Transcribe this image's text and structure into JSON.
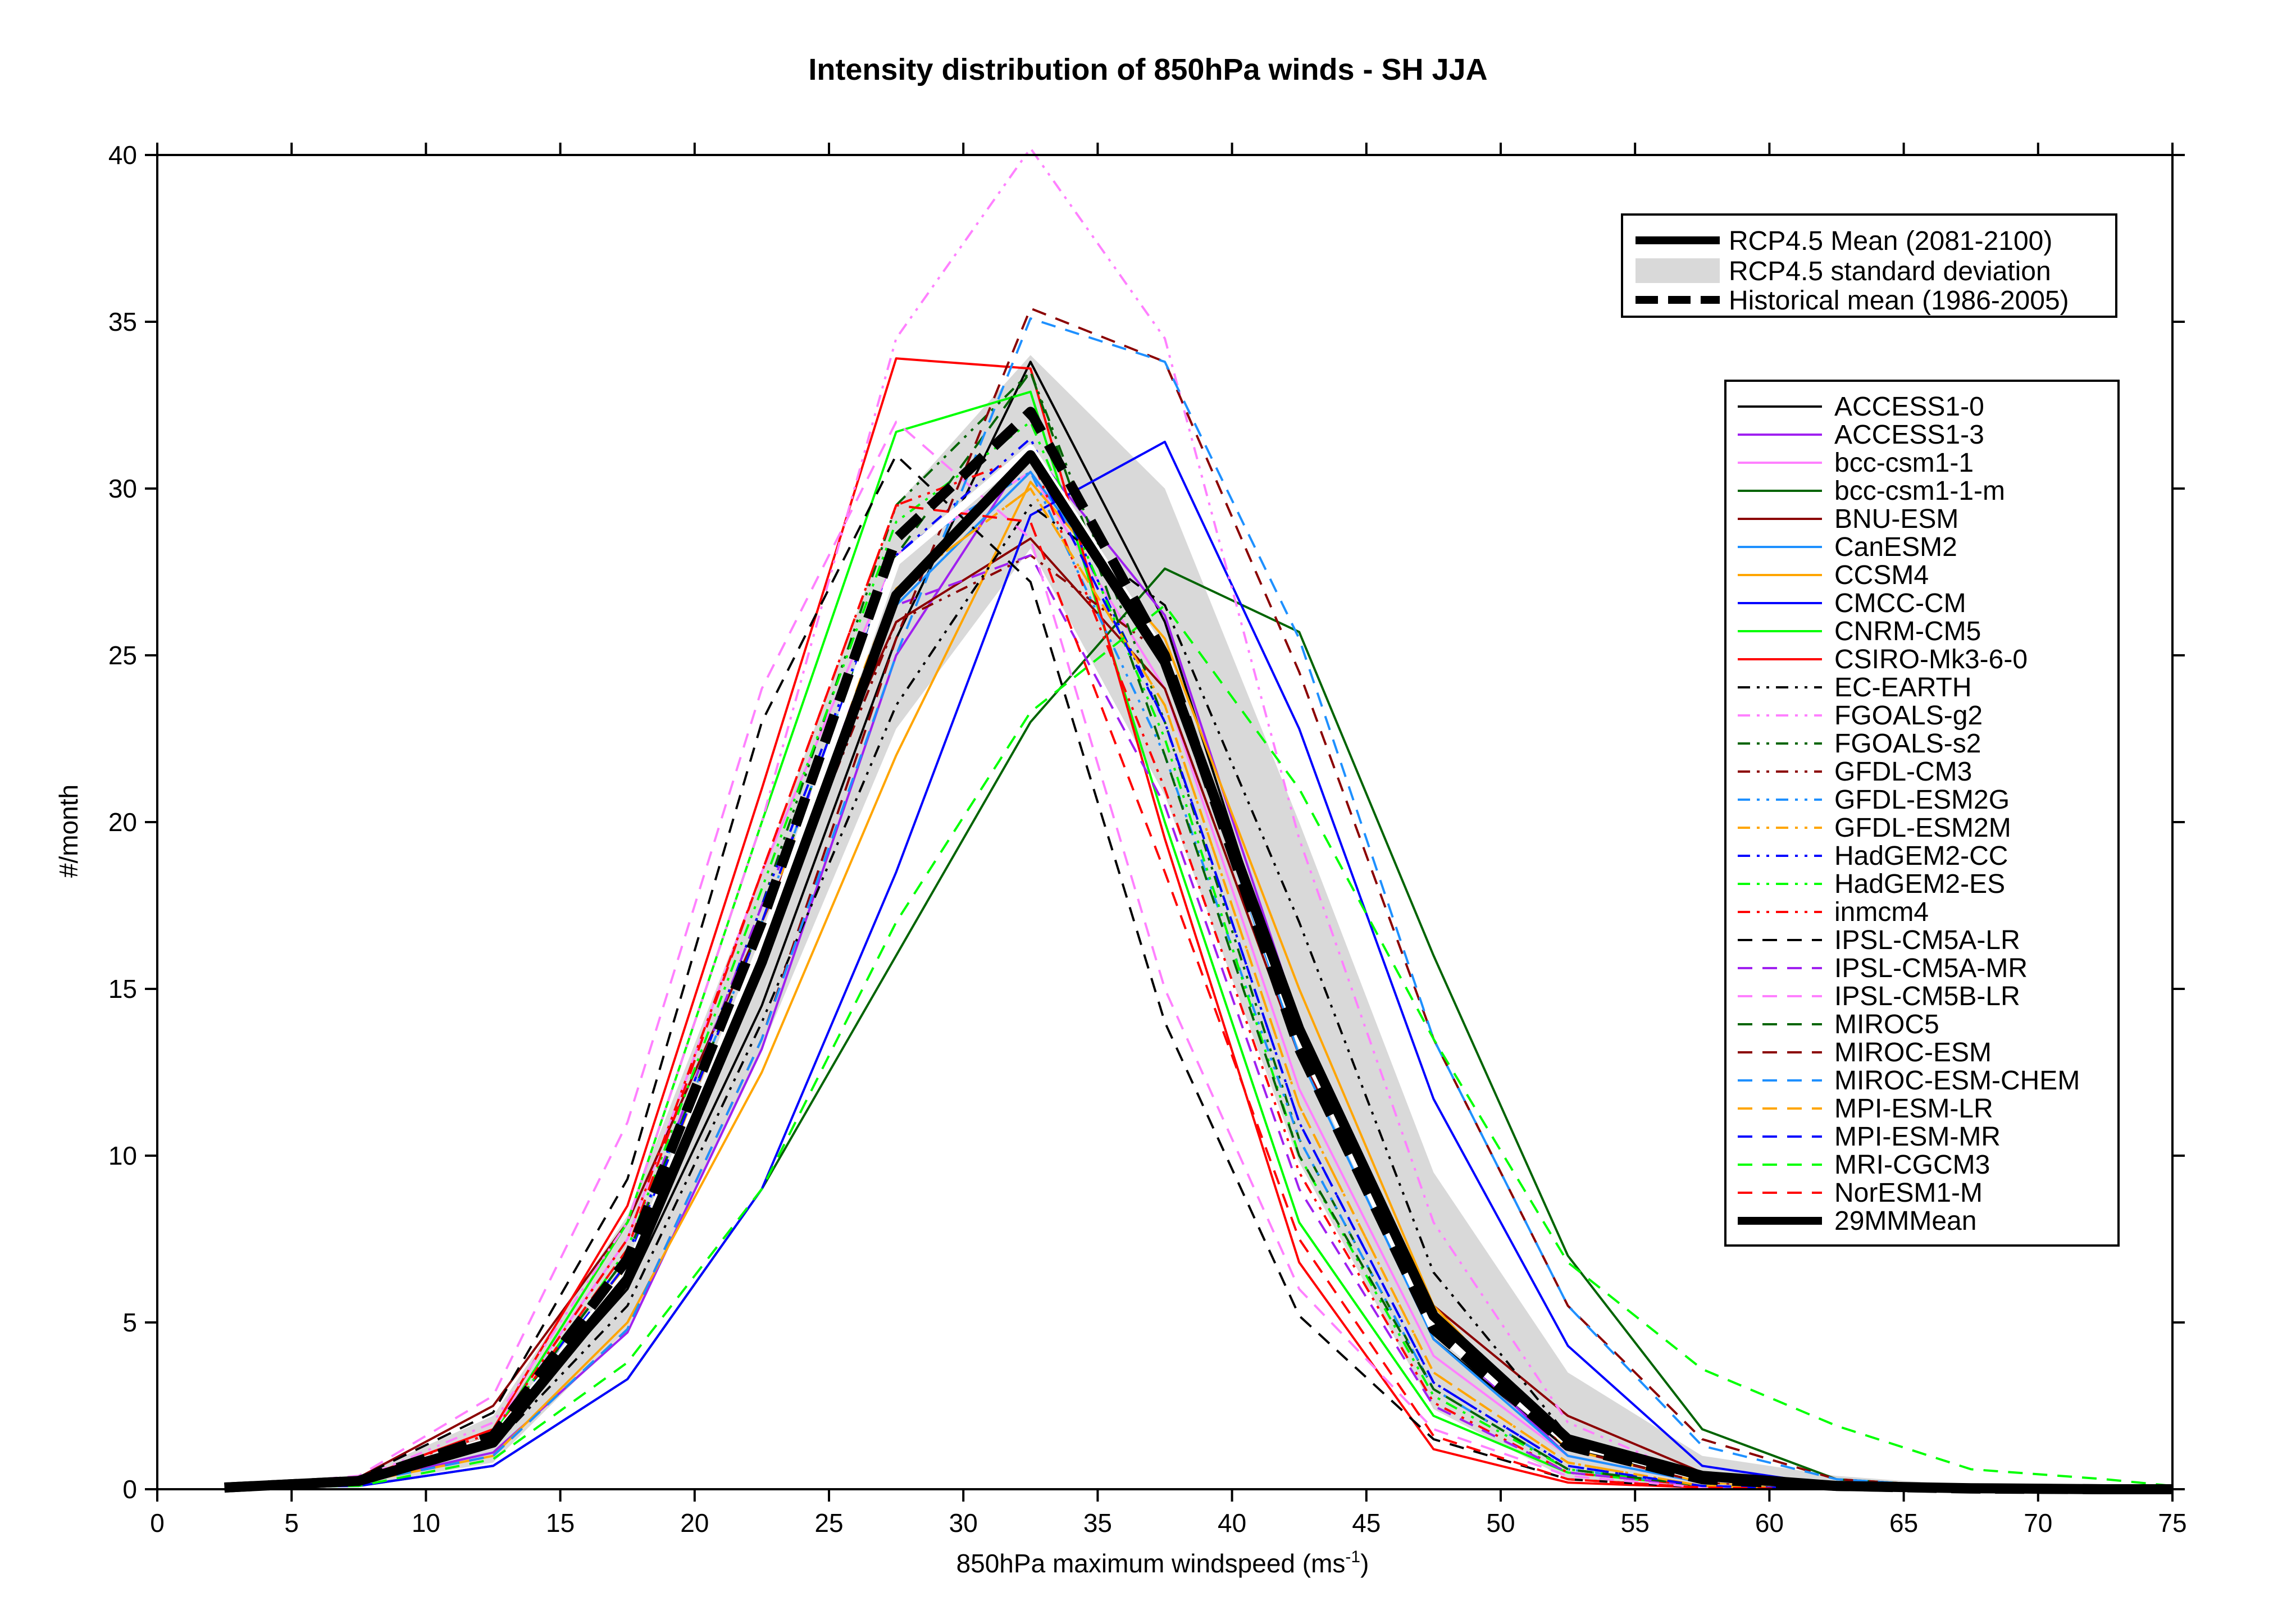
{
  "chart_data": {
    "type": "line",
    "title": "Intensity distribution of 850hPa winds - SH JJA",
    "xlabel": "850hPa maximum windspeed (ms",
    "xlabel_sup": "-1",
    "xlabel_end": ")",
    "ylabel": "#/month",
    "xlim": [
      0,
      75
    ],
    "ylim": [
      0,
      40
    ],
    "x_ticks": [
      "0",
      "5",
      "10",
      "15",
      "20",
      "25",
      "30",
      "35",
      "40",
      "45",
      "50",
      "55",
      "60",
      "65",
      "70",
      "75"
    ],
    "y_ticks": [
      "0",
      "5",
      "10",
      "15",
      "20",
      "25",
      "30",
      "35",
      "40"
    ],
    "x": [
      2.5,
      7.5,
      12.5,
      17.5,
      22.5,
      27.5,
      32.5,
      37.5,
      42.5,
      47.5,
      52.5,
      57.5,
      62.5,
      67.5,
      72.5,
      75
    ],
    "legend_top": [
      {
        "label": "RCP4.5 Mean (2081-2100)",
        "style": "solid-thick"
      },
      {
        "label": "RCP4.5 standard deviation",
        "style": "band"
      },
      {
        "label": "Historical mean (1986-2005)",
        "style": "dashed-thick"
      }
    ],
    "rcp_mean": [
      0.05,
      0.25,
      1.4,
      6.3,
      15.8,
      26.8,
      31.0,
      24.8,
      13.8,
      5.2,
      1.5,
      0.4,
      0.1,
      0.03,
      0.0,
      0.0
    ],
    "rcp_sd_upper": [
      0.1,
      0.4,
      2.2,
      8.2,
      18.5,
      29.5,
      34.0,
      30.0,
      20.0,
      9.5,
      3.5,
      1.0,
      0.4,
      0.1,
      0.05,
      0.0
    ],
    "rcp_sd_lower": [
      0.0,
      0.1,
      0.8,
      4.8,
      13.2,
      22.8,
      28.2,
      20.8,
      9.8,
      2.4,
      0.3,
      0.05,
      0.0,
      0.0,
      0.0,
      0.0
    ],
    "historical_mean": [
      0.05,
      0.25,
      1.6,
      6.9,
      17.0,
      28.5,
      32.3,
      25.0,
      13.2,
      4.8,
      1.3,
      0.3,
      0.1,
      0.02,
      0.0,
      0.0
    ],
    "series": [
      {
        "name": "ACCESS1-0",
        "color": "#000000",
        "dash": "solid",
        "values": [
          0.05,
          0.3,
          1.5,
          6.0,
          14.5,
          25.5,
          33.8,
          26.0,
          13.5,
          4.5,
          1.2,
          0.3,
          0.1,
          0.0,
          0.0,
          0.0
        ]
      },
      {
        "name": "ACCESS1-3",
        "color": "#a020f0",
        "dash": "solid",
        "values": [
          0.05,
          0.2,
          1.1,
          4.7,
          13.2,
          25.0,
          31.2,
          26.2,
          14.0,
          4.8,
          1.0,
          0.2,
          0.05,
          0.0,
          0.0,
          0.0
        ]
      },
      {
        "name": "bcc-csm1-1",
        "color": "#ff80ff",
        "dash": "solid",
        "values": [
          0.05,
          0.3,
          1.8,
          7.5,
          18.5,
          28.0,
          30.5,
          24.0,
          12.0,
          4.0,
          1.0,
          0.2,
          0.05,
          0.0,
          0.0,
          0.0
        ]
      },
      {
        "name": "bcc-csm1-1-m",
        "color": "#006400",
        "dash": "solid",
        "values": [
          0.05,
          0.1,
          0.7,
          3.3,
          9.0,
          16.0,
          23.0,
          27.6,
          25.7,
          16.0,
          7.0,
          1.8,
          0.3,
          0.05,
          0.0,
          0.0
        ]
      },
      {
        "name": "BNU-ESM",
        "color": "#8b0000",
        "dash": "solid",
        "values": [
          0.05,
          0.35,
          2.5,
          8.0,
          17.0,
          26.0,
          28.5,
          24.0,
          13.0,
          5.5,
          2.2,
          0.5,
          0.1,
          0.0,
          0.0,
          0.0
        ]
      },
      {
        "name": "CanESM2",
        "color": "#1e90ff",
        "dash": "solid",
        "values": [
          0.05,
          0.25,
          1.4,
          6.5,
          16.0,
          26.5,
          30.5,
          25.0,
          13.0,
          4.5,
          1.0,
          0.2,
          0.05,
          0.0,
          0.0,
          0.0
        ]
      },
      {
        "name": "CCSM4",
        "color": "#ffa500",
        "dash": "solid",
        "values": [
          0.05,
          0.2,
          1.0,
          5.0,
          12.5,
          22.0,
          30.2,
          25.5,
          15.0,
          5.5,
          1.2,
          0.2,
          0.05,
          0.0,
          0.0,
          0.0
        ]
      },
      {
        "name": "CMCC-CM",
        "color": "#0000ff",
        "dash": "solid",
        "values": [
          0.05,
          0.1,
          0.7,
          3.3,
          9.0,
          18.5,
          29.2,
          31.4,
          22.8,
          11.7,
          4.3,
          0.7,
          0.1,
          0.0,
          0.0,
          0.0
        ]
      },
      {
        "name": "CNRM-CM5",
        "color": "#00ff00",
        "dash": "solid",
        "values": [
          0.05,
          0.3,
          1.6,
          8.0,
          20.0,
          31.7,
          32.9,
          20.0,
          8.0,
          2.2,
          0.5,
          0.1,
          0.0,
          0.0,
          0.0,
          0.0
        ]
      },
      {
        "name": "CSIRO-Mk3-6-0",
        "color": "#ff0000",
        "dash": "solid",
        "values": [
          0.05,
          0.3,
          1.8,
          8.5,
          21.0,
          33.9,
          33.6,
          19.5,
          6.8,
          1.2,
          0.2,
          0.05,
          0.0,
          0.0,
          0.0,
          0.0
        ]
      },
      {
        "name": "EC-EARTH",
        "color": "#000000",
        "dash": "dashdotdot",
        "values": [
          0.05,
          0.25,
          1.3,
          5.5,
          14.0,
          23.5,
          29.5,
          26.5,
          17.0,
          6.5,
          1.6,
          0.3,
          0.05,
          0.0,
          0.0,
          0.0
        ]
      },
      {
        "name": "FGOALS-g2",
        "color": "#ff80ff",
        "dash": "dashdotdot",
        "values": [
          0.05,
          0.3,
          2.0,
          8.0,
          20.0,
          34.5,
          40.2,
          34.5,
          19.5,
          8.0,
          2.0,
          0.3,
          0.05,
          0.0,
          0.0,
          0.0
        ]
      },
      {
        "name": "FGOALS-s2",
        "color": "#006400",
        "dash": "dashdotdot",
        "values": [
          0.05,
          0.3,
          1.6,
          7.0,
          17.5,
          29.5,
          33.5,
          23.0,
          10.5,
          3.0,
          0.6,
          0.1,
          0.0,
          0.0,
          0.0,
          0.0
        ]
      },
      {
        "name": "GFDL-CM3",
        "color": "#8b0000",
        "dash": "dashdotdot",
        "values": [
          0.05,
          0.25,
          1.5,
          6.5,
          16.0,
          26.0,
          28.0,
          25.0,
          14.0,
          5.0,
          1.2,
          0.2,
          0.05,
          0.0,
          0.0,
          0.0
        ]
      },
      {
        "name": "GFDL-ESM2G",
        "color": "#1e90ff",
        "dash": "dashdotdot",
        "values": [
          0.05,
          0.3,
          1.6,
          7.0,
          17.0,
          28.0,
          30.5,
          22.0,
          10.5,
          3.0,
          0.6,
          0.1,
          0.0,
          0.0,
          0.0,
          0.0
        ]
      },
      {
        "name": "GFDL-ESM2M",
        "color": "#ffa500",
        "dash": "dashdotdot",
        "values": [
          0.05,
          0.3,
          1.5,
          6.5,
          16.5,
          27.0,
          30.0,
          23.5,
          11.5,
          3.5,
          0.8,
          0.1,
          0.0,
          0.0,
          0.0,
          0.0
        ]
      },
      {
        "name": "HadGEM2-CC",
        "color": "#0000ff",
        "dash": "dashdotdot",
        "values": [
          0.05,
          0.3,
          1.6,
          7.0,
          17.5,
          28.0,
          31.5,
          23.0,
          11.0,
          3.2,
          0.7,
          0.1,
          0.0,
          0.0,
          0.0,
          0.0
        ]
      },
      {
        "name": "HadGEM2-ES",
        "color": "#00ff00",
        "dash": "dashdotdot",
        "values": [
          0.05,
          0.3,
          1.6,
          7.2,
          18.0,
          29.0,
          32.0,
          22.5,
          10.0,
          2.8,
          0.6,
          0.1,
          0.0,
          0.0,
          0.0,
          0.0
        ]
      },
      {
        "name": "inmcm4",
        "color": "#ff0000",
        "dash": "dashdotdot",
        "values": [
          0.05,
          0.3,
          1.7,
          7.5,
          18.5,
          29.5,
          31.0,
          21.0,
          9.5,
          2.6,
          0.5,
          0.1,
          0.0,
          0.0,
          0.0,
          0.0
        ]
      },
      {
        "name": "IPSL-CM5A-LR",
        "color": "#000000",
        "dash": "dashed",
        "values": [
          0.05,
          0.35,
          2.3,
          9.3,
          23.0,
          31.0,
          27.2,
          14.0,
          5.2,
          1.5,
          0.3,
          0.05,
          0.0,
          0.0,
          0.0,
          0.0
        ]
      },
      {
        "name": "IPSL-CM5A-MR",
        "color": "#a020f0",
        "dash": "dashed",
        "values": [
          0.05,
          0.3,
          1.6,
          7.0,
          17.5,
          26.5,
          28.0,
          20.5,
          9.0,
          2.5,
          0.5,
          0.1,
          0.0,
          0.0,
          0.0,
          0.0
        ]
      },
      {
        "name": "IPSL-CM5B-LR",
        "color": "#ff80ff",
        "dash": "dashed",
        "values": [
          0.05,
          0.4,
          2.8,
          11.0,
          24.0,
          32.0,
          28.5,
          15.0,
          6.0,
          1.8,
          0.4,
          0.05,
          0.0,
          0.0,
          0.0,
          0.0
        ]
      },
      {
        "name": "MIROC5",
        "color": "#006400",
        "dash": "dashed",
        "values": [
          0.05,
          0.3,
          1.6,
          7.0,
          17.0,
          28.0,
          33.5,
          22.0,
          10.0,
          3.0,
          0.6,
          0.1,
          0.0,
          0.0,
          0.0,
          0.0
        ]
      },
      {
        "name": "MIROC-ESM",
        "color": "#8b0000",
        "dash": "dashed",
        "values": [
          0.05,
          0.2,
          1.0,
          4.8,
          13.5,
          25.5,
          35.4,
          33.8,
          24.5,
          13.5,
          5.5,
          1.5,
          0.3,
          0.05,
          0.0,
          0.0
        ]
      },
      {
        "name": "MIROC-ESM-CHEM",
        "color": "#1e90ff",
        "dash": "dashed",
        "values": [
          0.05,
          0.2,
          1.0,
          4.8,
          13.5,
          25.0,
          35.1,
          33.8,
          25.5,
          13.5,
          5.5,
          1.3,
          0.3,
          0.05,
          0.0,
          0.0
        ]
      },
      {
        "name": "MPI-ESM-LR",
        "color": "#ffa500",
        "dash": "dashed",
        "values": [
          0.05,
          0.3,
          1.5,
          6.7,
          17.0,
          27.0,
          30.0,
          23.5,
          11.5,
          3.5,
          0.8,
          0.1,
          0.0,
          0.0,
          0.0,
          0.0
        ]
      },
      {
        "name": "MPI-ESM-MR",
        "color": "#0000ff",
        "dash": "dashed",
        "values": [
          0.05,
          0.3,
          1.5,
          6.8,
          17.0,
          28.0,
          31.0,
          23.0,
          11.0,
          3.2,
          0.7,
          0.1,
          0.0,
          0.0,
          0.0,
          0.0
        ]
      },
      {
        "name": "MRI-CGCM3",
        "color": "#00ff00",
        "dash": "dashed",
        "values": [
          0.05,
          0.1,
          0.9,
          3.8,
          9.0,
          17.0,
          23.3,
          26.5,
          21.0,
          13.5,
          6.8,
          3.6,
          1.9,
          0.6,
          0.3,
          0.1
        ]
      },
      {
        "name": "NorESM1-M",
        "color": "#ff0000",
        "dash": "dashed",
        "values": [
          0.05,
          0.3,
          1.6,
          7.2,
          18.5,
          29.5,
          29.0,
          18.5,
          7.5,
          1.6,
          0.3,
          0.05,
          0.0,
          0.0,
          0.0,
          0.0
        ]
      }
    ],
    "mm_mean": {
      "name": "29MMMean",
      "values": [
        0.05,
        0.25,
        1.5,
        6.5,
        16.3,
        27.8,
        31.2,
        25.0,
        13.5,
        4.8,
        1.4,
        0.35,
        0.08,
        0.02,
        0.0,
        0.0
      ]
    },
    "grid": false,
    "legend_placement": "top-right"
  }
}
